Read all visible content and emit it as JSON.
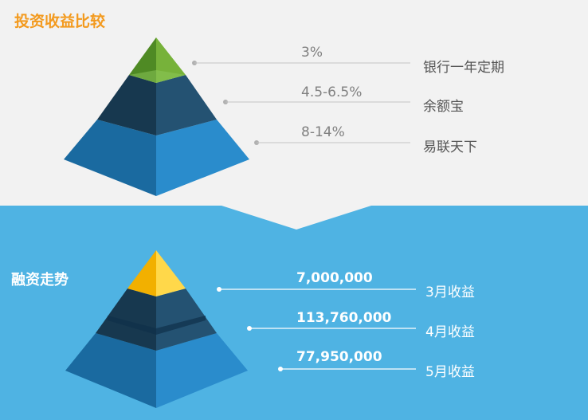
{
  "top_section": {
    "title": "投资收益比较",
    "tiers": [
      {
        "value": "3%",
        "label": "银行一年定期"
      },
      {
        "value": "4.5-6.5%",
        "label": "余额宝"
      },
      {
        "value": "8-14%",
        "label": "易联天下"
      }
    ]
  },
  "bottom_section": {
    "title": "融资走势",
    "tiers": [
      {
        "value": "7,000,000",
        "label": "3月收益"
      },
      {
        "value": "113,760,000",
        "label": "4月收益"
      },
      {
        "value": "77,950,000",
        "label": "5月收益"
      }
    ]
  },
  "colors": {
    "top_bg": "#f2f2f2",
    "bottom_bg": "#4fb3e3",
    "title_orange": "#f39a1e",
    "apex_green": "#6aa234",
    "apex_yellow": "#ffd000",
    "dark_tier": "#1e4e6e",
    "base_tier": "#2a86c2"
  }
}
